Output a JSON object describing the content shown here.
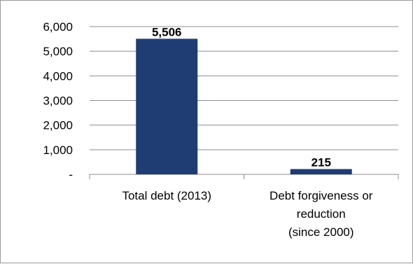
{
  "chart_data": {
    "type": "bar",
    "title": "",
    "xlabel": "",
    "ylabel": "",
    "categories": [
      "Total debt (2013)",
      "Debt forgiveness or reduction (since 2000)"
    ],
    "category_lines": [
      [
        "Total debt (2013)"
      ],
      [
        "Debt forgiveness or",
        "reduction",
        "(since 2000)"
      ]
    ],
    "values": [
      5506,
      215
    ],
    "data_labels": [
      "5,506",
      "215"
    ],
    "ylim": [
      0,
      6000
    ],
    "yticks": [
      0,
      1000,
      2000,
      3000,
      4000,
      5000,
      6000
    ],
    "ytick_labels": [
      "-",
      "1,000",
      "2,000",
      "3,000",
      "4,000",
      "5,000",
      "6,000"
    ],
    "grid": true,
    "legend": "none",
    "bar_color": "#1f3d73",
    "grid_color": "#8c8c8c"
  }
}
